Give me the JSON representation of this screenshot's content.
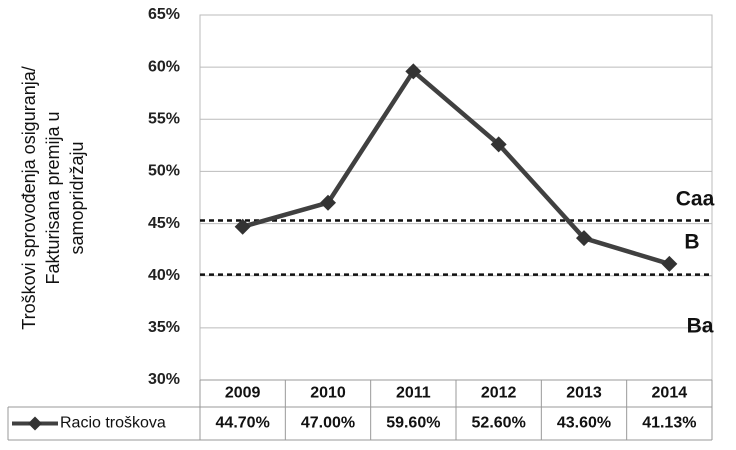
{
  "chart_data": {
    "type": "line",
    "y_label": [
      "Troškovi sprovođenja osiguranja/",
      "Fakturisana premija u",
      "samopridržaju"
    ],
    "categories": [
      "2009",
      "2010",
      "2011",
      "2012",
      "2013",
      "2014"
    ],
    "series": [
      {
        "name": "Racio troškova",
        "color": "#404040",
        "values": [
          44.7,
          47.0,
          59.6,
          52.6,
          43.6,
          41.13
        ],
        "value_labels": [
          "44.70%",
          "47.00%",
          "59.60%",
          "52.60%",
          "43.60%",
          "41.13%"
        ]
      }
    ],
    "ylim": [
      30,
      65
    ],
    "yticks": [
      {
        "value": 30,
        "label": "30%"
      },
      {
        "value": 35,
        "label": "35%"
      },
      {
        "value": 40,
        "label": "40%"
      },
      {
        "value": 45,
        "label": "45%"
      },
      {
        "value": 50,
        "label": "50%"
      },
      {
        "value": 55,
        "label": "55%"
      },
      {
        "value": 60,
        "label": "60%"
      },
      {
        "value": 65,
        "label": "65%"
      }
    ],
    "grid": true,
    "reference_lines": [
      45.3,
      40.1
    ],
    "annotations": [
      "Caa",
      "B",
      "Ba"
    ]
  }
}
